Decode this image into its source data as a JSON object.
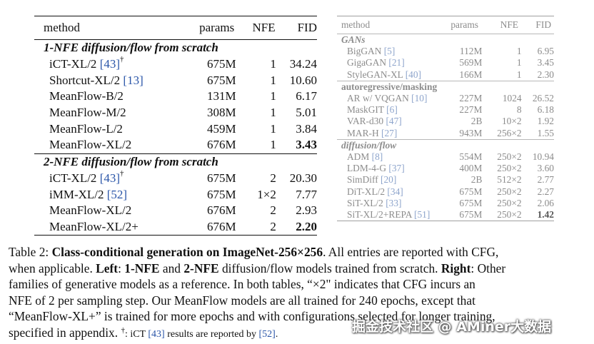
{
  "left_table": {
    "columns": [
      "method",
      "params",
      "NFE",
      "FID"
    ],
    "sections": [
      {
        "title": "1-NFE diffusion/flow from scratch",
        "rows": [
          {
            "name": "iCT-XL/2 ",
            "ref": "[43]",
            "dagger": "†",
            "params": "675M",
            "nfe": "1",
            "fid": "34.24",
            "bold": false
          },
          {
            "name": "Shortcut-XL/2 ",
            "ref": "[13]",
            "dagger": "",
            "params": "675M",
            "nfe": "1",
            "fid": "10.60",
            "bold": false
          },
          {
            "name": "MeanFlow-B/2",
            "ref": "",
            "dagger": "",
            "params": "131M",
            "nfe": "1",
            "fid": "6.17",
            "bold": false
          },
          {
            "name": "MeanFlow-M/2",
            "ref": "",
            "dagger": "",
            "params": "308M",
            "nfe": "1",
            "fid": "5.01",
            "bold": false
          },
          {
            "name": "MeanFlow-L/2",
            "ref": "",
            "dagger": "",
            "params": "459M",
            "nfe": "1",
            "fid": "3.84",
            "bold": false
          },
          {
            "name": "MeanFlow-XL/2",
            "ref": "",
            "dagger": "",
            "params": "676M",
            "nfe": "1",
            "fid": "3.43",
            "bold": true
          }
        ]
      },
      {
        "title": "2-NFE diffusion/flow from scratch",
        "rows": [
          {
            "name": "iCT-XL/2 ",
            "ref": "[43]",
            "dagger": "†",
            "params": "675M",
            "nfe": "2",
            "fid": "20.30",
            "bold": false
          },
          {
            "name": "iMM-XL/2 ",
            "ref": "[52]",
            "dagger": "",
            "params": "675M",
            "nfe": "1×2",
            "fid": "7.77",
            "bold": false
          },
          {
            "name": "MeanFlow-XL/2",
            "ref": "",
            "dagger": "",
            "params": "676M",
            "nfe": "2",
            "fid": "2.93",
            "bold": false
          },
          {
            "name": "MeanFlow-XL/2+",
            "ref": "",
            "dagger": "",
            "params": "676M",
            "nfe": "2",
            "fid": "2.20",
            "bold": true
          }
        ]
      }
    ]
  },
  "right_table": {
    "columns": [
      "method",
      "params",
      "NFE",
      "FID"
    ],
    "sections": [
      {
        "title": "GANs",
        "italic": true,
        "rows": [
          {
            "name": "BigGAN ",
            "ref": "[5]",
            "params": "112M",
            "nfe": "1",
            "fid": "6.95",
            "bold": false
          },
          {
            "name": "GigaGAN ",
            "ref": "[21]",
            "params": "569M",
            "nfe": "1",
            "fid": "3.45",
            "bold": false
          },
          {
            "name": "StyleGAN-XL ",
            "ref": "[40]",
            "params": "166M",
            "nfe": "1",
            "fid": "2.30",
            "bold": false
          }
        ]
      },
      {
        "title": "autoregressive/masking",
        "italic": false,
        "rows": [
          {
            "name": "AR w/ VQGAN ",
            "ref": "[10]",
            "params": "227M",
            "nfe": "1024",
            "fid": "26.52",
            "bold": false
          },
          {
            "name": "MaskGIT ",
            "ref": "[6]",
            "params": "227M",
            "nfe": "8",
            "fid": "6.18",
            "bold": false
          },
          {
            "name": "VAR-d30 ",
            "ref": "[47]",
            "params": "2B",
            "nfe": "10×2",
            "fid": "1.92",
            "bold": false
          },
          {
            "name": "MAR-H ",
            "ref": "[27]",
            "params": "943M",
            "nfe": "256×2",
            "fid": "1.55",
            "bold": false
          }
        ]
      },
      {
        "title": "diffusion/flow",
        "italic": true,
        "rows": [
          {
            "name": "ADM ",
            "ref": "[8]",
            "params": "554M",
            "nfe": "250×2",
            "fid": "10.94",
            "bold": false
          },
          {
            "name": "LDM-4-G ",
            "ref": "[37]",
            "params": "400M",
            "nfe": "250×2",
            "fid": "3.60",
            "bold": false
          },
          {
            "name": "SimDiff ",
            "ref": "[20]",
            "params": "2B",
            "nfe": "512×2",
            "fid": "2.77",
            "bold": false
          },
          {
            "name": "DiT-XL/2 ",
            "ref": "[34]",
            "params": "675M",
            "nfe": "250×2",
            "fid": "2.27",
            "bold": false
          },
          {
            "name": "SiT-XL/2 ",
            "ref": "[33]",
            "params": "675M",
            "nfe": "250×2",
            "fid": "2.06",
            "bold": false
          },
          {
            "name": "SiT-XL/2+REPA ",
            "ref": "[51]",
            "params": "675M",
            "nfe": "250×2",
            "fid": "1.42",
            "bold": true
          }
        ]
      }
    ]
  },
  "caption": {
    "label": "Table 2: ",
    "title": "Class-conditional generation on ImageNet-256×256",
    "s1": ". All entries are reported with CFG,",
    "s2": "when applicable. ",
    "left_word": "Left",
    "s3": ": ",
    "nfe1": "1-NFE",
    "s4": " and ",
    "nfe2": "2-NFE",
    "s5": " diffusion/flow models trained from scratch. ",
    "right_word": "Right",
    "s6": ": Other",
    "line3": "families of generative models as a reference.  In both tables, “×2\" indicates that CFG incurs an",
    "line4": "NFE of 2 per sampling step.  Our MeanFlow models are all trained for 240 epochs, except that",
    "line5": "“MeanFlow-XL+” is trained for more epochs and with configurations selected for longer training,",
    "line6a": "specified in appendix. ",
    "dagger": "†",
    "line6b": ": iCT ",
    "ref_a": "[43]",
    "line6c": " results are reported by ",
    "ref_b": "[52]",
    "line6d": "."
  },
  "watermark": "掘金技术社区 @ AMiner大数据"
}
